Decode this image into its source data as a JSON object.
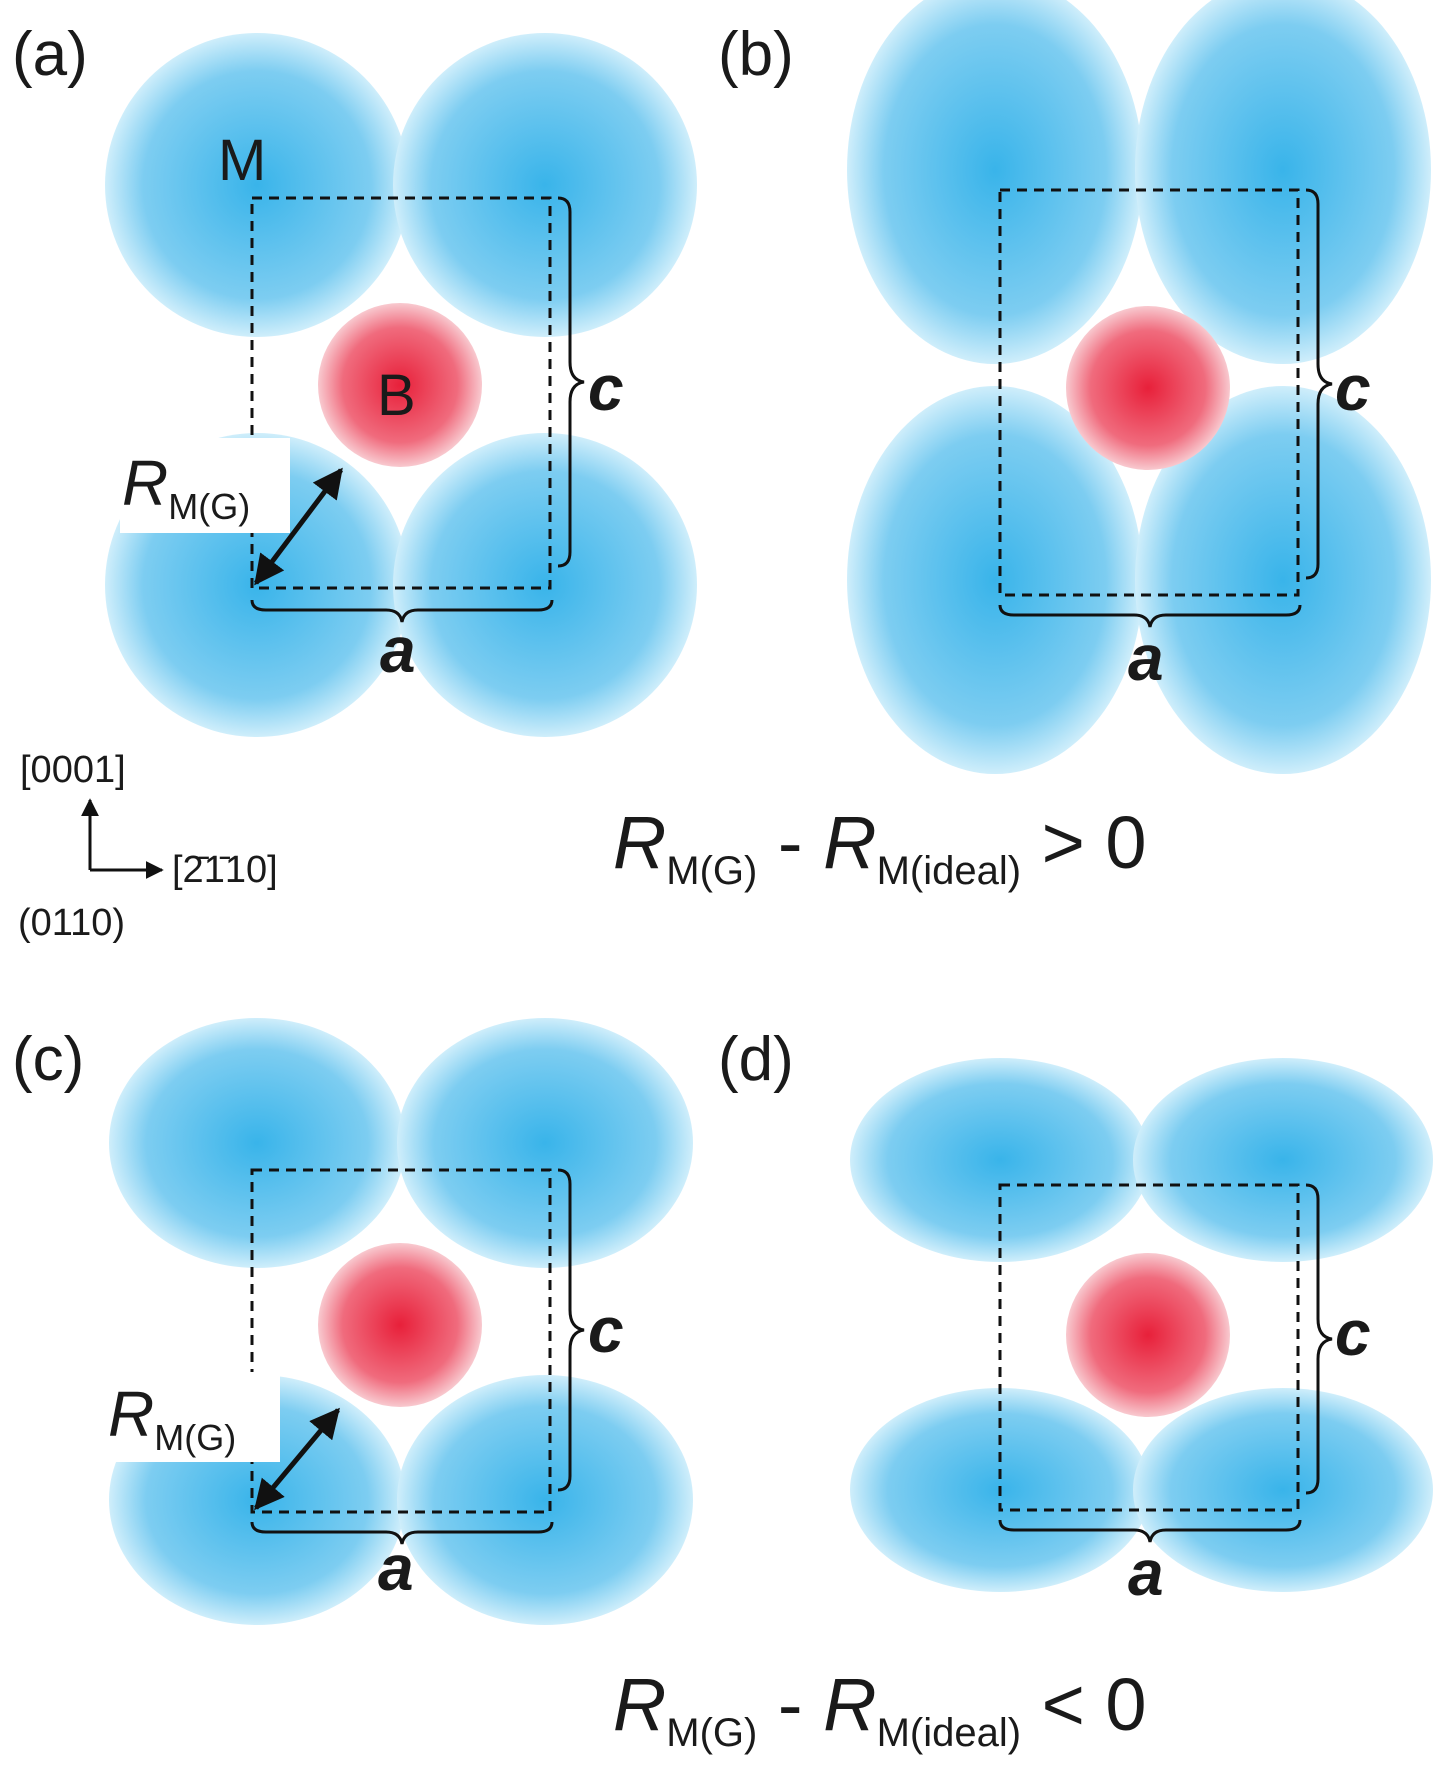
{
  "panels": [
    {
      "label": "(a)",
      "metal_label": "M",
      "boron_label": "B",
      "c_label": "c",
      "a_label": "a",
      "radius_label": "R",
      "radius_sub": "M(G)"
    },
    {
      "label": "(b)",
      "c_label": "c",
      "a_label": "a"
    },
    {
      "label": "(c)",
      "c_label": "c",
      "a_label": "a",
      "radius_label": "R",
      "radius_sub": "M(G)"
    },
    {
      "label": "(d)",
      "c_label": "c",
      "a_label": "a"
    }
  ],
  "axes": {
    "up": "[0001]",
    "right": "[2̄1̄10]",
    "right_plain": "[2110]",
    "normal": "(0110)"
  },
  "conditions": {
    "top": {
      "r1": "R",
      "s1": "M(G)",
      "minus": " - ",
      "r2": "R",
      "s2": "M(ideal)",
      "relation": " > 0"
    },
    "bottom": {
      "r1": "R",
      "s1": "M(G)",
      "minus": " - ",
      "r2": "R",
      "s2": "M(ideal)",
      "relation": " < 0"
    }
  },
  "colors": {
    "metal_center": "#39b4ea",
    "metal_edge": "#cfeefb",
    "boron_center": "#e8203a",
    "boron_edge": "#f8c9cf",
    "line": "#111111"
  }
}
